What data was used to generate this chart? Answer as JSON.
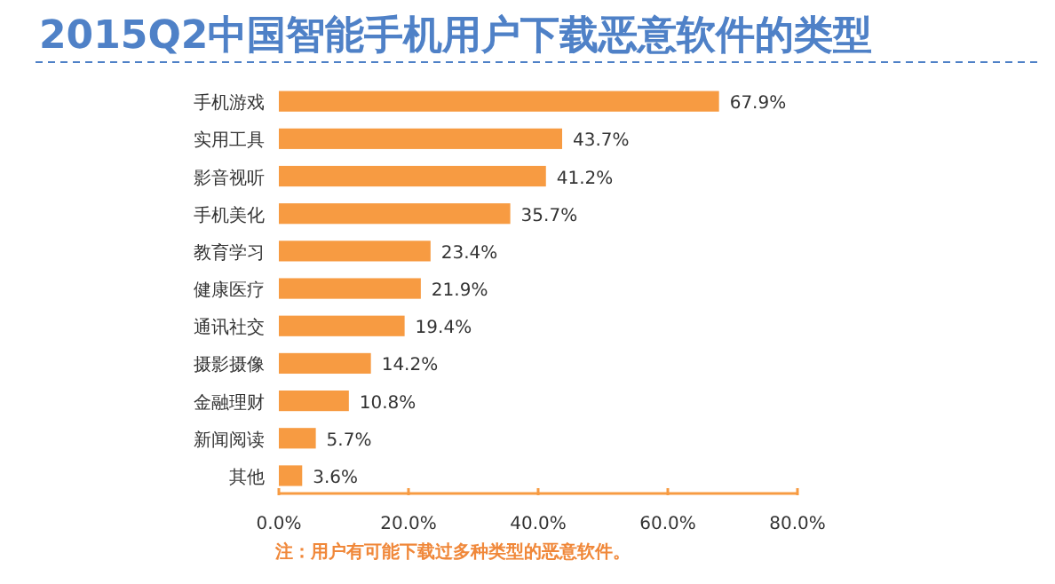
{
  "chart_data": {
    "type": "bar",
    "orientation": "horizontal",
    "title": "2015Q2中国智能手机用户下载恶意软件的类型",
    "categories": [
      "手机游戏",
      "实用工具",
      "影音视听",
      "手机美化",
      "教育学习",
      "健康医疗",
      "通讯社交",
      "摄影摄像",
      "金融理财",
      "新闻阅读",
      "其他"
    ],
    "values": [
      67.9,
      43.7,
      41.2,
      35.7,
      23.4,
      21.9,
      19.4,
      14.2,
      10.8,
      5.7,
      3.6
    ],
    "value_labels": [
      "67.9%",
      "43.7%",
      "41.2%",
      "35.7%",
      "23.4%",
      "21.9%",
      "19.4%",
      "14.2%",
      "10.8%",
      "5.7%",
      "3.6%"
    ],
    "color": "#f79b42",
    "xlim": [
      0,
      80
    ],
    "xticks": [
      {
        "value": 0,
        "label": "0.0%"
      },
      {
        "value": 20,
        "label": "20.0%"
      },
      {
        "value": 40,
        "label": "40.0%"
      },
      {
        "value": 60,
        "label": "60.0%"
      },
      {
        "value": 80,
        "label": "80.0%"
      }
    ],
    "grid": false,
    "annotations": [
      "注：用户有可能下载过多种类型的恶意软件。"
    ]
  }
}
